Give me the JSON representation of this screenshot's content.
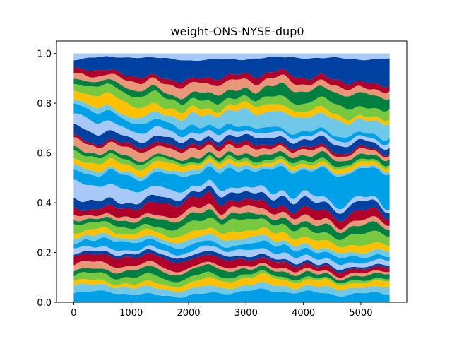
{
  "chart_data": {
    "type": "area",
    "stacked": true,
    "normalized": true,
    "title": "weight-ONS-NYSE-dup0",
    "xlabel": "",
    "ylabel": "",
    "xlim": [
      -300,
      5800
    ],
    "ylim": [
      0,
      1.05
    ],
    "x_ticks": [
      0,
      1000,
      2000,
      3000,
      4000,
      5000
    ],
    "y_ticks": [
      0.0,
      0.2,
      0.4,
      0.6,
      0.8,
      1.0
    ],
    "x_tick_labels": [
      "0",
      "1000",
      "2000",
      "3000",
      "4000",
      "5000"
    ],
    "y_tick_labels": [
      "0.0",
      "0.2",
      "0.4",
      "0.6",
      "0.8",
      "1.0"
    ],
    "grid": false,
    "x_range_data": [
      0,
      5500
    ],
    "band_count": 36,
    "palette": [
      "#00a0e8",
      "#70c8e8",
      "#ffc000",
      "#78c840",
      "#008040",
      "#e89878",
      "#b0002a",
      "#0040a0",
      "#a8c8f8"
    ],
    "layer_weights_start": [
      0.03,
      0.02,
      0.02,
      0.025,
      0.025,
      0.02,
      0.03,
      0.015,
      0.02,
      0.025,
      0.02,
      0.03,
      0.025,
      0.02,
      0.02,
      0.04,
      0.03,
      0.05,
      0.03,
      0.02,
      0.025,
      0.02,
      0.015,
      0.03,
      0.02,
      0.03,
      0.04,
      0.03,
      0.02,
      0.04,
      0.03,
      0.02,
      0.03,
      0.03,
      0.04,
      0.02
    ],
    "layer_weights_end": [
      0.04,
      0.03,
      0.025,
      0.01,
      0.02,
      0.01,
      0.02,
      0.01,
      0.02,
      0.025,
      0.02,
      0.025,
      0.04,
      0.03,
      0.02,
      0.03,
      0.03,
      0.015,
      0.11,
      0.01,
      0.015,
      0.01,
      0.02,
      0.02,
      0.01,
      0.025,
      0.02,
      0.02,
      0.06,
      0.02,
      0.035,
      0.045,
      0.03,
      0.02,
      0.09,
      0.02
    ]
  }
}
